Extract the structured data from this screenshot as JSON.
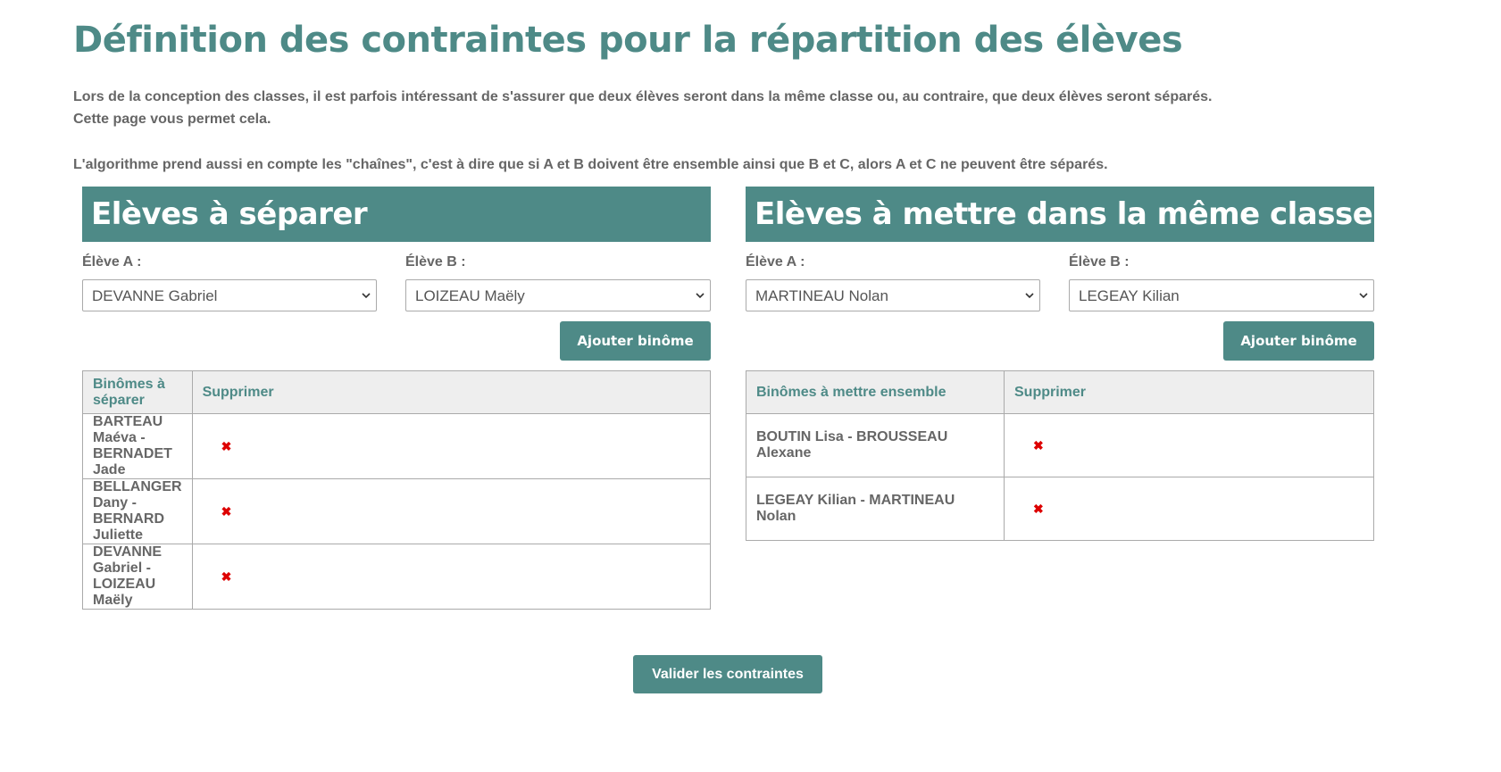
{
  "header": {
    "title": "Définition des contraintes pour la répartition des élèves"
  },
  "intro": {
    "lines": [
      "Lors de la conception des classes, il est parfois intéressant de s'assurer que deux élèves seront dans la même classe ou, au contraire, que deux élèves seront séparés.",
      "Cette page vous permet cela.",
      "L'algorithme prend aussi en compte les \"chaînes\", c'est à dire que si A et B doivent être ensemble ainsi que B et C, alors A et C ne peuvent être séparés."
    ]
  },
  "sections": [
    {
      "title": "Elèves à séparer",
      "label_a": "Élève A :",
      "label_b": "Élève B :",
      "select_a": "DEVANNE Gabriel",
      "select_b": "LOIZEAU Maëly",
      "add_button": "Ajouter binôme",
      "table": {
        "headers": [
          "Binômes à séparer",
          "Supprimer"
        ],
        "rows": [
          "BARTEAU Maéva - BERNADET Jade",
          "BELLANGER Dany - BERNARD Juliette",
          "DEVANNE Gabriel - LOIZEAU Maëly"
        ]
      }
    },
    {
      "title": "Elèves à mettre dans la même classe",
      "label_a": "Élève A :",
      "label_b": "Élève B :",
      "select_a": "MARTINEAU Nolan",
      "select_b": "LEGEAY Kilian",
      "add_button": "Ajouter binôme",
      "table": {
        "headers": [
          "Binômes à mettre ensemble",
          "Supprimer"
        ],
        "rows": [
          "BOUTIN Lisa - BROUSSEAU Alexane",
          "LEGEAY Kilian - MARTINEAU Nolan"
        ]
      }
    }
  ],
  "submit_button": "Valider les contraintes"
}
